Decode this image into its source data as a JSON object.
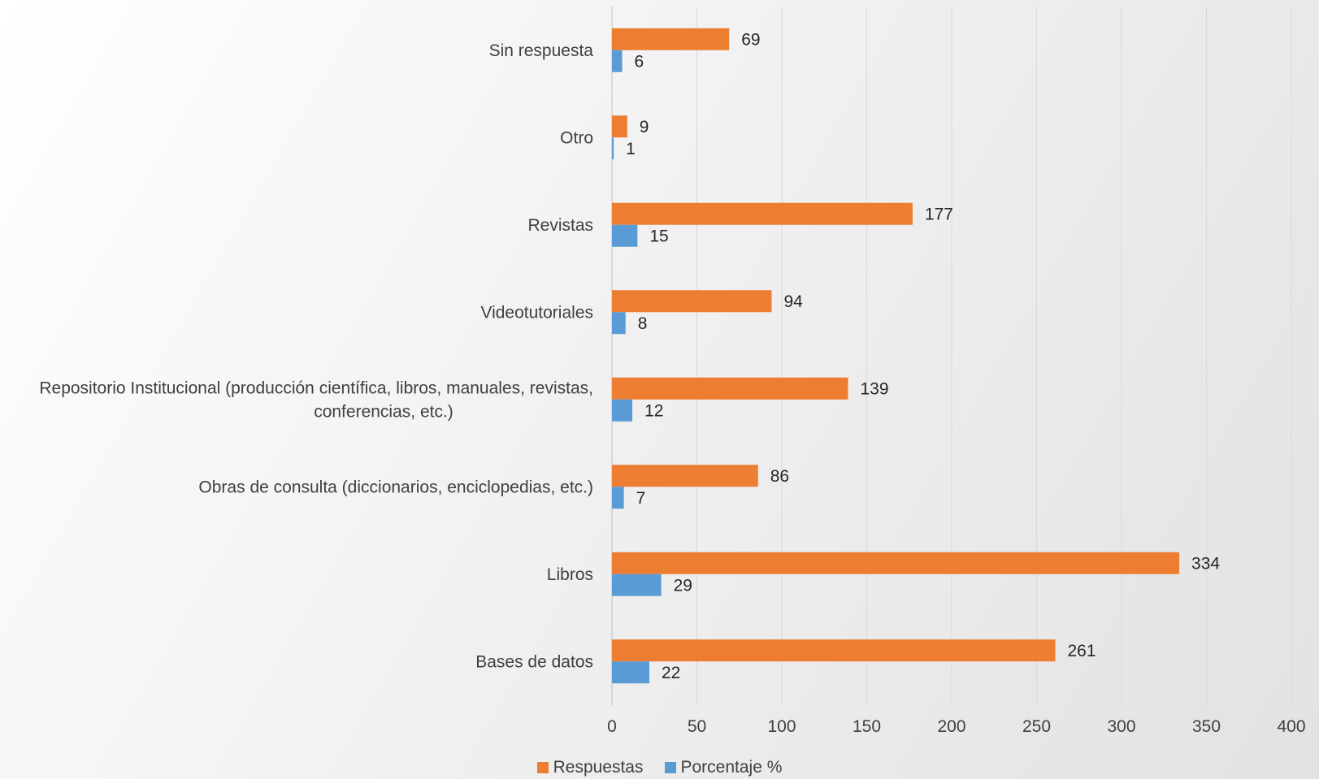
{
  "chart_data": {
    "type": "bar",
    "orientation": "horizontal",
    "categories": [
      "Sin respuesta",
      "Otro",
      "Revistas",
      "Videotutoriales",
      "Repositorio Institucional (producción científica, libros, manuales, revistas, conferencias, etc.)",
      "Obras de consulta (diccionarios, enciclopedias, etc.)",
      "Libros",
      "Bases de datos"
    ],
    "category_lines": [
      [
        "Sin respuesta"
      ],
      [
        "Otro"
      ],
      [
        "Revistas"
      ],
      [
        "Videotutoriales"
      ],
      [
        "Repositorio Institucional (producción científica, libros, manuales, revistas,",
        "conferencias, etc.)"
      ],
      [
        "Obras de consulta (diccionarios, enciclopedias, etc.)"
      ],
      [
        "Libros"
      ],
      [
        "Bases de datos"
      ]
    ],
    "series": [
      {
        "name": "Respuestas",
        "color": "#ED7D31",
        "values": [
          69,
          9,
          177,
          94,
          139,
          86,
          334,
          261
        ]
      },
      {
        "name": "Porcentaje %",
        "color": "#5B9BD5",
        "values": [
          6,
          1,
          15,
          8,
          12,
          7,
          29,
          22
        ]
      }
    ],
    "xlim": [
      0,
      400
    ],
    "xticks": [
      0,
      50,
      100,
      150,
      200,
      250,
      300,
      350,
      400
    ],
    "grid": true,
    "legend_position": "bottom",
    "title": "",
    "xlabel": "",
    "ylabel": ""
  }
}
